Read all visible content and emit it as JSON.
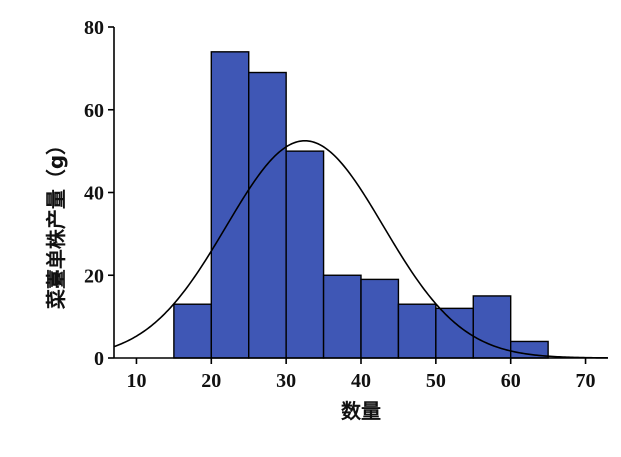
{
  "chart_data": {
    "type": "bar",
    "subtype": "histogram-with-normal-curve",
    "xlabel": "数量",
    "ylabel": "菜薹单株产量（g）",
    "xlim": [
      7,
      73
    ],
    "ylim": [
      0,
      80
    ],
    "x_ticks": [
      "10",
      "20",
      "30",
      "40",
      "50",
      "60",
      "70"
    ],
    "y_ticks": [
      "0",
      "20",
      "40",
      "60",
      "80"
    ],
    "bins": [
      {
        "x0": 15,
        "x1": 20,
        "value": 13
      },
      {
        "x0": 20,
        "x1": 25,
        "value": 74
      },
      {
        "x0": 25,
        "x1": 30,
        "value": 69
      },
      {
        "x0": 30,
        "x1": 35,
        "value": 50
      },
      {
        "x0": 35,
        "x1": 40,
        "value": 20
      },
      {
        "x0": 40,
        "x1": 45,
        "value": 19
      },
      {
        "x0": 45,
        "x1": 50,
        "value": 13
      },
      {
        "x0": 50,
        "x1": 55,
        "value": 12
      },
      {
        "x0": 55,
        "x1": 60,
        "value": 15
      },
      {
        "x0": 60,
        "x1": 65,
        "value": 4
      }
    ],
    "normal_curve": {
      "mean": 32.5,
      "sd": 10.5,
      "peak": 52.5
    },
    "bar_color": "#3f57b5",
    "bar_edge_color": "#000000",
    "curve_color": "#000000",
    "grid": false,
    "legend": false
  }
}
